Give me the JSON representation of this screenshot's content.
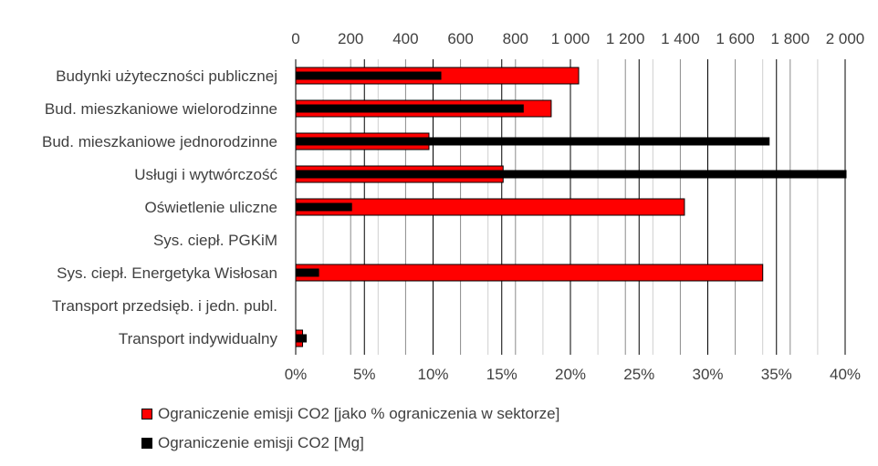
{
  "chart_data": {
    "type": "bar",
    "orientation": "horizontal",
    "categories": [
      "Budynki użyteczności publicznej",
      "Bud. mieszkaniowe wielorodzinne",
      "Bud. mieszkaniowe jednorodzinne",
      "Usługi i wytwórczość",
      "Oświetlenie uliczne",
      "Sys. ciepł. PGKiM",
      "Sys. ciepł. Energetyka Wisłosan",
      "Transport przedsięb. i jedn. publ.",
      "Transport indywidualny"
    ],
    "series": [
      {
        "name": "Ograniczenie emisji CO2 [jako % ograniczenia w sektorze]",
        "axis": "bottom",
        "color": "#ff0000",
        "values": [
          20.6,
          18.6,
          9.7,
          15.1,
          28.3,
          0,
          34.0,
          0,
          0.5
        ]
      },
      {
        "name": "Ograniczenie emisji CO2 [Mg]",
        "axis": "top",
        "color": "#000000",
        "values": [
          530,
          830,
          1725,
          2005,
          205,
          0,
          85,
          0,
          40
        ]
      }
    ],
    "top_axis": {
      "range": [
        0,
        2000
      ],
      "ticks": [
        "0",
        "200",
        "400",
        "600",
        "800",
        "1 000",
        "1 200",
        "1 400",
        "1 600",
        "1 800",
        "2 000"
      ]
    },
    "bottom_axis": {
      "range": [
        0,
        40
      ],
      "ticks": [
        "0%",
        "5%",
        "10%",
        "15%",
        "20%",
        "25%",
        "30%",
        "35%",
        "40%"
      ]
    },
    "grid": true,
    "legend_position": "bottom"
  }
}
